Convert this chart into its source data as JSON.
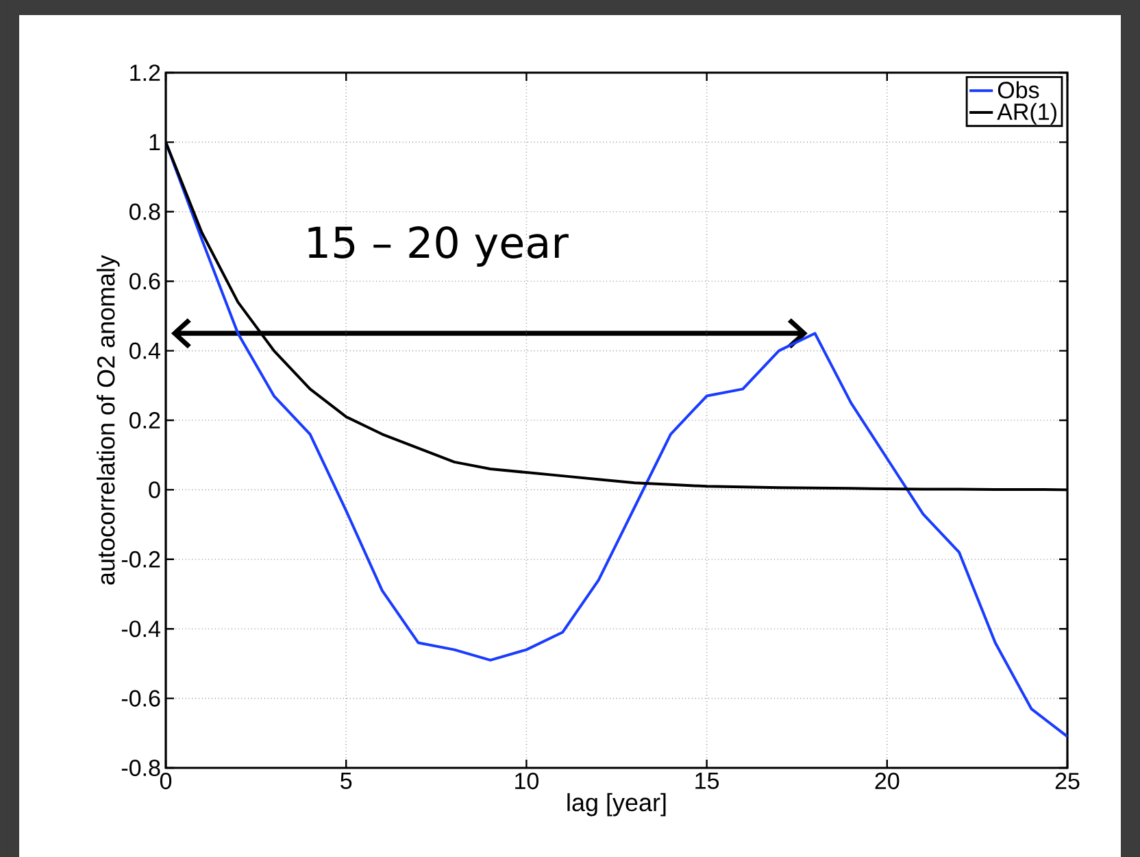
{
  "chart_data": {
    "type": "line",
    "xlabel": "lag [year]",
    "ylabel": "autocorrelation of O2 anomaly",
    "annotations": [
      "15 – 20 year"
    ],
    "x": [
      0,
      1,
      2,
      3,
      4,
      5,
      6,
      7,
      8,
      9,
      10,
      11,
      12,
      13,
      14,
      15,
      16,
      17,
      18,
      19,
      20,
      21,
      22,
      23,
      24,
      25
    ],
    "series": [
      {
        "name": "Obs",
        "color": "#1a3cff",
        "values": [
          1.0,
          0.72,
          0.45,
          0.27,
          0.16,
          -0.06,
          -0.29,
          -0.44,
          -0.46,
          -0.49,
          -0.46,
          -0.41,
          -0.26,
          -0.05,
          0.16,
          0.27,
          0.29,
          0.4,
          0.45,
          0.25,
          0.09,
          -0.07,
          -0.18,
          -0.44,
          -0.63,
          -0.71
        ]
      },
      {
        "name": "AR(1)",
        "color": "#000000",
        "values": [
          1.0,
          0.74,
          0.54,
          0.4,
          0.29,
          0.21,
          0.16,
          0.12,
          0.08,
          0.06,
          0.05,
          0.04,
          0.03,
          0.02,
          0.015,
          0.01,
          0.008,
          0.006,
          0.005,
          0.004,
          0.003,
          0.002,
          0.002,
          0.001,
          0.001,
          0.0
        ]
      }
    ],
    "xlim": [
      0,
      25
    ],
    "ylim": [
      -0.8,
      1.2
    ],
    "xticks": [
      0,
      5,
      10,
      15,
      20,
      25
    ],
    "yticks": [
      -0.8,
      -0.6,
      -0.4,
      -0.2,
      0,
      0.2,
      0.4,
      0.6,
      0.8,
      1,
      1.2
    ],
    "grid": true,
    "legend": "top right",
    "marker": "none",
    "line_style": "solid"
  }
}
